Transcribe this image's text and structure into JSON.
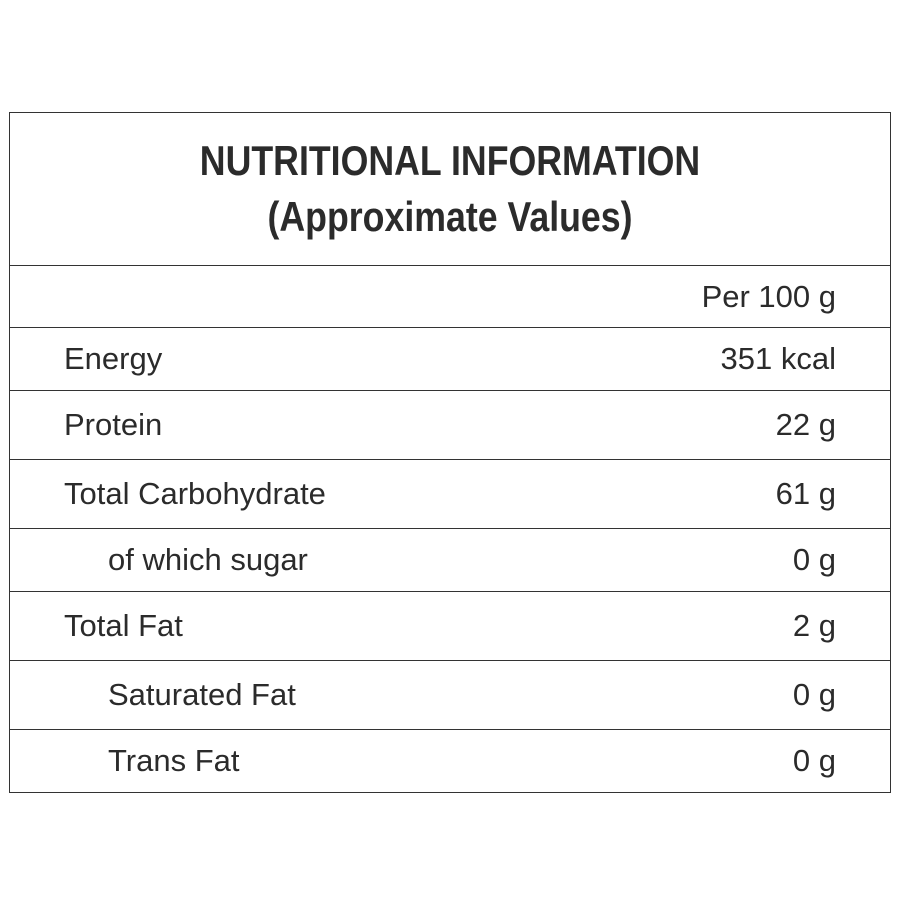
{
  "header": {
    "title": "NUTRITIONAL INFORMATION",
    "subtitle": "(Approximate Values)"
  },
  "table": {
    "column_header": "Per 100 g",
    "rows": [
      [
        "Energy",
        "351 kcal"
      ],
      [
        "Protein",
        "22 g"
      ],
      [
        "Total Carbohydrate",
        "61 g"
      ],
      [
        "of which sugar",
        "0 g"
      ],
      [
        "Total Fat",
        "2 g"
      ],
      [
        "Saturated Fat",
        "0 g"
      ],
      [
        "Trans Fat",
        "0 g"
      ]
    ]
  }
}
